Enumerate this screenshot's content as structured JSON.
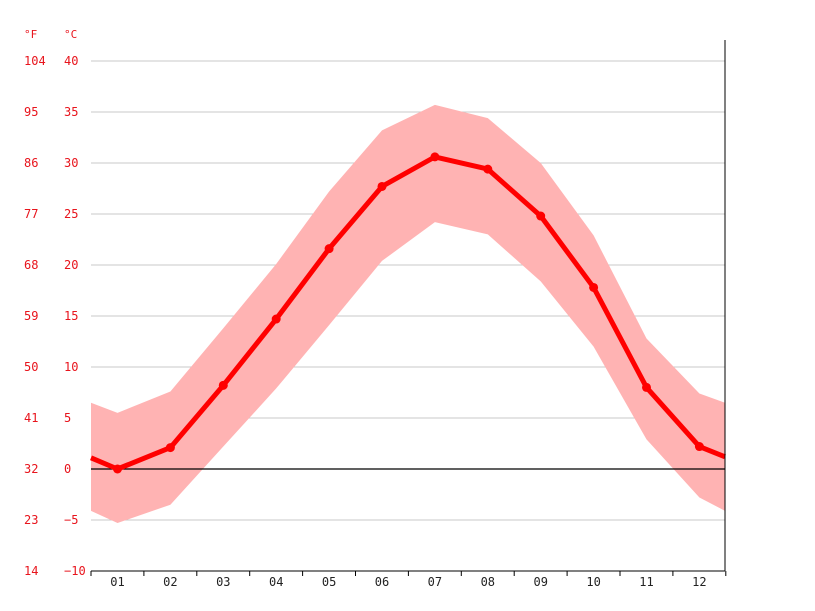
{
  "chart_data": {
    "type": "line",
    "title": "",
    "units": {
      "left": "°F",
      "right": "°C"
    },
    "categories": [
      "01",
      "02",
      "03",
      "04",
      "05",
      "06",
      "07",
      "08",
      "09",
      "10",
      "11",
      "12"
    ],
    "y_celsius_ticks": [
      "40",
      "35",
      "30",
      "25",
      "20",
      "15",
      "10",
      "5",
      "0",
      "−5",
      "−10"
    ],
    "y_fahrenheit_ticks": [
      "104",
      "95",
      "86",
      "77",
      "68",
      "59",
      "50",
      "41",
      "32",
      "23",
      "14"
    ],
    "ylim": [
      -10,
      40
    ],
    "grid": true,
    "zero_line": true,
    "series": [
      {
        "values": [
          0.0,
          2.1,
          8.2,
          14.7,
          21.6,
          27.7,
          30.6,
          29.4,
          24.8,
          17.8,
          8.0,
          2.2
        ]
      },
      {
        "values": [
          5.5,
          7.6,
          13.8,
          20.1,
          27.2,
          33.2,
          35.7,
          34.4,
          30.0,
          22.9,
          12.8,
          7.4
        ]
      },
      {
        "values": [
          -5.3,
          -3.5,
          2.2,
          7.9,
          14.1,
          20.4,
          24.2,
          23.0,
          18.4,
          12.0,
          2.9,
          -2.8
        ]
      }
    ],
    "edge_values": {
      "mean": [
        1.1,
        1.2
      ],
      "max": [
        6.5,
        6.5
      ],
      "min": [
        -4.1,
        -4.1
      ]
    },
    "colors": {
      "line": "#ff0000",
      "band": "#ffb3b3",
      "grid": "#c8c8c8",
      "ticks": "#e8141c",
      "zero": "#000000"
    }
  }
}
